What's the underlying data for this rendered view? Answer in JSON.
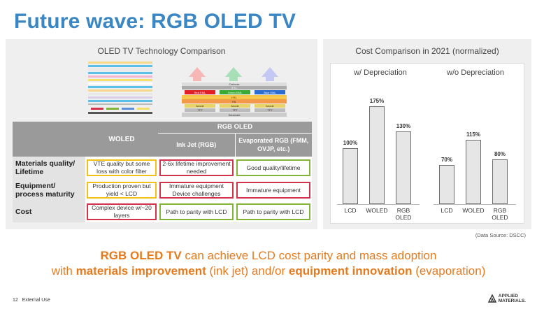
{
  "title": "Future wave: RGB OLED TV",
  "left_panel": {
    "title": "OLED TV Technology Comparison",
    "rgb_stack": {
      "top_label": "Cathode",
      "etl": "ETL",
      "emitters": [
        "Red EML",
        "Green EML",
        "Blue EML"
      ],
      "htl": "HTL",
      "hil": "HIL",
      "anodes": [
        "Anode",
        "Anode",
        "Anode"
      ],
      "tfts": [
        "TFT",
        "TFT",
        "TFT"
      ],
      "substrate": "Substrate"
    },
    "table": {
      "rgb_header": "RGB OLED",
      "col_woled": "WOLED",
      "col_inkjet": "Ink Jet (RGB)",
      "col_evap": "Evaporated RGB (FMM, OVJP, etc.)",
      "rows": [
        {
          "label": "Materials quality/ Lifetime",
          "woled": "VTE quality but some loss with color filter",
          "inkjet": "2-6x lifetime improvement needed",
          "evap": "Good quality/lifetime"
        },
        {
          "label": "Equipment/ process maturity",
          "woled": "Production proven but yield < LCD",
          "inkjet": "Immature equipment Device challenges",
          "evap": "Immature equipment"
        },
        {
          "label": "Cost",
          "woled": "Complex device w/~20 layers",
          "inkjet": "Path to parity with LCD",
          "evap": "Path to parity with LCD"
        }
      ]
    }
  },
  "right_panel": {
    "title": "Cost Comparison in 2021 (normalized)"
  },
  "chart_data": [
    {
      "type": "bar",
      "title": "w/ Depreciation",
      "categories": [
        "LCD",
        "WOLED",
        "RGB OLED"
      ],
      "values": [
        100,
        175,
        130
      ],
      "labels": [
        "100%",
        "175%",
        "130%"
      ],
      "ylim": [
        0,
        200
      ]
    },
    {
      "type": "bar",
      "title": "w/o Depreciation",
      "categories": [
        "LCD",
        "WOLED",
        "RGB OLED"
      ],
      "values": [
        70,
        115,
        80
      ],
      "labels": [
        "70%",
        "115%",
        "80%"
      ],
      "ylim": [
        0,
        200
      ]
    }
  ],
  "source": "(Data Source: DSCC)",
  "message": {
    "l1_bold": "RGB OLED TV",
    "l1_rest": " can achieve LCD cost parity and mass adoption",
    "l2_pre": "with ",
    "l2_b1": "materials improvement",
    "l2_mid": " (ink jet) and/or ",
    "l2_b2": "equipment innovation",
    "l2_end": " (evaporation)"
  },
  "footer": {
    "page": "12",
    "classification": "External Use"
  },
  "logo": {
    "line1": "APPLIED",
    "line2": "MATERIALS."
  },
  "colors": {
    "title": "#3a87c4",
    "accent": "#e67b1e",
    "yellow": "#f2c21b",
    "red": "#d2334a",
    "green": "#82b43a"
  }
}
